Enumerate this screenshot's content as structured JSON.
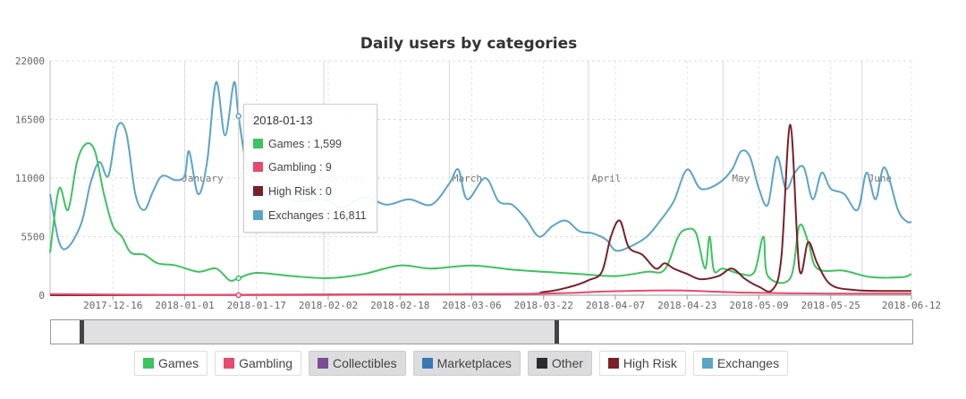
{
  "chart_data": {
    "type": "line",
    "title": "Daily users by categories",
    "xlabel": "",
    "ylabel": "",
    "ylim": [
      0,
      22000
    ],
    "xlim": [
      "2017-12-02",
      "2018-06-12"
    ],
    "y_ticks": [
      "0",
      "5500",
      "11000",
      "16500",
      "22000"
    ],
    "y_tick_values": [
      0,
      5500,
      11000,
      16500,
      22000
    ],
    "x_ticks": [
      "2017-12-16",
      "2018-01-01",
      "2018-01-17",
      "2018-02-02",
      "2018-02-18",
      "2018-03-06",
      "2018-03-22",
      "2018-04-07",
      "2018-04-23",
      "2018-05-09",
      "2018-05-25",
      "2018-06-12"
    ],
    "month_labels": [
      {
        "label": "January",
        "date": "2018-01-01"
      },
      {
        "label": "February",
        "date": "2018-02-01"
      },
      {
        "label": "March",
        "date": "2018-03-01"
      },
      {
        "label": "April",
        "date": "2018-04-01"
      },
      {
        "label": "May",
        "date": "2018-05-01"
      },
      {
        "label": "June",
        "date": "2018-06-01"
      }
    ],
    "grid": true,
    "legend_position": "bottom",
    "series": [
      {
        "name": "Exchanges",
        "color": "#5ba4c6",
        "points": [
          [
            "2017-12-02",
            9500
          ],
          [
            "2017-12-04",
            5000
          ],
          [
            "2017-12-06",
            4500
          ],
          [
            "2017-12-09",
            6800
          ],
          [
            "2017-12-11",
            10500
          ],
          [
            "2017-12-13",
            12500
          ],
          [
            "2017-12-15",
            11200
          ],
          [
            "2017-12-17",
            15800
          ],
          [
            "2017-12-19",
            15200
          ],
          [
            "2017-12-21",
            9500
          ],
          [
            "2017-12-23",
            8000
          ],
          [
            "2017-12-25",
            9800
          ],
          [
            "2017-12-27",
            11200
          ],
          [
            "2017-12-30",
            10800
          ],
          [
            "2018-01-01",
            11200
          ],
          [
            "2018-01-02",
            13500
          ],
          [
            "2018-01-04",
            9500
          ],
          [
            "2018-01-06",
            12500
          ],
          [
            "2018-01-08",
            20000
          ],
          [
            "2018-01-10",
            15000
          ],
          [
            "2018-01-12",
            20000
          ],
          [
            "2018-01-13",
            16811
          ],
          [
            "2018-01-15",
            12000
          ],
          [
            "2018-01-18",
            10500
          ],
          [
            "2018-01-22",
            9500
          ],
          [
            "2018-01-26",
            8800
          ],
          [
            "2018-02-01",
            9000
          ],
          [
            "2018-02-05",
            8200
          ],
          [
            "2018-02-10",
            9200
          ],
          [
            "2018-02-15",
            8500
          ],
          [
            "2018-02-20",
            9000
          ],
          [
            "2018-02-25",
            8500
          ],
          [
            "2018-03-01",
            10500
          ],
          [
            "2018-03-03",
            11800
          ],
          [
            "2018-03-05",
            9000
          ],
          [
            "2018-03-09",
            11000
          ],
          [
            "2018-03-12",
            8800
          ],
          [
            "2018-03-15",
            8500
          ],
          [
            "2018-03-18",
            7200
          ],
          [
            "2018-03-21",
            5500
          ],
          [
            "2018-03-24",
            6500
          ],
          [
            "2018-03-27",
            7000
          ],
          [
            "2018-03-30",
            6000
          ],
          [
            "2018-04-02",
            5800
          ],
          [
            "2018-04-05",
            5200
          ],
          [
            "2018-04-07",
            4200
          ],
          [
            "2018-04-10",
            4500
          ],
          [
            "2018-04-14",
            5500
          ],
          [
            "2018-04-17",
            7000
          ],
          [
            "2018-04-20",
            8800
          ],
          [
            "2018-04-23",
            11800
          ],
          [
            "2018-04-26",
            10000
          ],
          [
            "2018-04-30",
            10500
          ],
          [
            "2018-05-03",
            11800
          ],
          [
            "2018-05-05",
            13500
          ],
          [
            "2018-05-07",
            13000
          ],
          [
            "2018-05-09",
            10000
          ],
          [
            "2018-05-11",
            8500
          ],
          [
            "2018-05-13",
            13000
          ],
          [
            "2018-05-15",
            10000
          ],
          [
            "2018-05-17",
            11500
          ],
          [
            "2018-05-19",
            12000
          ],
          [
            "2018-05-21",
            9000
          ],
          [
            "2018-05-23",
            11500
          ],
          [
            "2018-05-25",
            10000
          ],
          [
            "2018-05-28",
            9500
          ],
          [
            "2018-05-31",
            8000
          ],
          [
            "2018-06-02",
            11500
          ],
          [
            "2018-06-04",
            9000
          ],
          [
            "2018-06-06",
            12000
          ],
          [
            "2018-06-09",
            8000
          ],
          [
            "2018-06-11",
            6900
          ],
          [
            "2018-06-12",
            6900
          ]
        ]
      },
      {
        "name": "Games",
        "color": "#3cc35f",
        "points": [
          [
            "2017-12-02",
            4000
          ],
          [
            "2017-12-04",
            10000
          ],
          [
            "2017-12-06",
            8000
          ],
          [
            "2017-12-08",
            12500
          ],
          [
            "2017-12-10",
            14200
          ],
          [
            "2017-12-12",
            13500
          ],
          [
            "2017-12-14",
            9500
          ],
          [
            "2017-12-16",
            6500
          ],
          [
            "2017-12-18",
            5500
          ],
          [
            "2017-12-20",
            4000
          ],
          [
            "2017-12-23",
            3800
          ],
          [
            "2017-12-26",
            3000
          ],
          [
            "2017-12-30",
            2800
          ],
          [
            "2018-01-04",
            2200
          ],
          [
            "2018-01-08",
            2500
          ],
          [
            "2018-01-11",
            1400
          ],
          [
            "2018-01-13",
            1599
          ],
          [
            "2018-01-17",
            2100
          ],
          [
            "2018-01-25",
            1800
          ],
          [
            "2018-02-02",
            1600
          ],
          [
            "2018-02-10",
            2000
          ],
          [
            "2018-02-18",
            2800
          ],
          [
            "2018-02-25",
            2500
          ],
          [
            "2018-03-06",
            2800
          ],
          [
            "2018-03-15",
            2400
          ],
          [
            "2018-03-22",
            2200
          ],
          [
            "2018-03-30",
            2000
          ],
          [
            "2018-04-07",
            1800
          ],
          [
            "2018-04-14",
            2200
          ],
          [
            "2018-04-18",
            2400
          ],
          [
            "2018-04-21",
            5500
          ],
          [
            "2018-04-23",
            6200
          ],
          [
            "2018-04-25",
            5800
          ],
          [
            "2018-04-27",
            2500
          ],
          [
            "2018-04-28",
            5500
          ],
          [
            "2018-04-29",
            2300
          ],
          [
            "2018-05-01",
            2500
          ],
          [
            "2018-05-05",
            2000
          ],
          [
            "2018-05-08",
            2200
          ],
          [
            "2018-05-10",
            5500
          ],
          [
            "2018-05-11",
            1800
          ],
          [
            "2018-05-16",
            1600
          ],
          [
            "2018-05-18",
            6500
          ],
          [
            "2018-05-20",
            5000
          ],
          [
            "2018-05-22",
            2500
          ],
          [
            "2018-05-28",
            2300
          ],
          [
            "2018-06-03",
            1700
          ],
          [
            "2018-06-10",
            1700
          ],
          [
            "2018-06-12",
            2000
          ]
        ]
      },
      {
        "name": "High Risk",
        "color": "#7a2027",
        "points": [
          [
            "2017-12-02",
            0
          ],
          [
            "2018-03-10",
            100
          ],
          [
            "2018-03-22",
            300
          ],
          [
            "2018-03-28",
            800
          ],
          [
            "2018-04-01",
            1400
          ],
          [
            "2018-04-04",
            2200
          ],
          [
            "2018-04-06",
            5500
          ],
          [
            "2018-04-08",
            7000
          ],
          [
            "2018-04-10",
            4500
          ],
          [
            "2018-04-13",
            3800
          ],
          [
            "2018-04-16",
            2500
          ],
          [
            "2018-04-18",
            3000
          ],
          [
            "2018-04-20",
            2500
          ],
          [
            "2018-04-23",
            2000
          ],
          [
            "2018-04-26",
            1500
          ],
          [
            "2018-04-30",
            1800
          ],
          [
            "2018-05-03",
            2500
          ],
          [
            "2018-05-06",
            1500
          ],
          [
            "2018-05-09",
            800
          ],
          [
            "2018-05-12",
            500
          ],
          [
            "2018-05-14",
            3500
          ],
          [
            "2018-05-16",
            16000
          ],
          [
            "2018-05-18",
            2500
          ],
          [
            "2018-05-20",
            5000
          ],
          [
            "2018-05-22",
            3000
          ],
          [
            "2018-05-25",
            1000
          ],
          [
            "2018-05-30",
            500
          ],
          [
            "2018-06-05",
            400
          ],
          [
            "2018-06-12",
            400
          ]
        ]
      },
      {
        "name": "Gambling",
        "color": "#e84a6f",
        "points": [
          [
            "2017-12-02",
            100
          ],
          [
            "2018-01-13",
            9
          ],
          [
            "2018-02-15",
            50
          ],
          [
            "2018-03-22",
            150
          ],
          [
            "2018-04-05",
            350
          ],
          [
            "2018-04-20",
            450
          ],
          [
            "2018-05-05",
            250
          ],
          [
            "2018-05-25",
            150
          ],
          [
            "2018-06-12",
            150
          ]
        ]
      }
    ],
    "tooltip": {
      "date": "2018-01-13",
      "rows": [
        {
          "text": "Games : 1,599",
          "color": "#3cc35f"
        },
        {
          "text": "Gambling : 9",
          "color": "#e84a6f"
        },
        {
          "text": "High Risk : 0",
          "color": "#7a2027"
        },
        {
          "text": "Exchanges : 16,811",
          "color": "#5ba4c6"
        }
      ]
    }
  },
  "legend": [
    {
      "label": "Games",
      "color": "#3cc35f",
      "active": true
    },
    {
      "label": "Gambling",
      "color": "#e84a6f",
      "active": true
    },
    {
      "label": "Collectibles",
      "color": "#7b4e94",
      "active": false
    },
    {
      "label": "Marketplaces",
      "color": "#3a78b5",
      "active": false
    },
    {
      "label": "Other",
      "color": "#2b2b2b",
      "active": false
    },
    {
      "label": "High Risk",
      "color": "#7a2027",
      "active": true
    },
    {
      "label": "Exchanges",
      "color": "#5ba4c6",
      "active": true
    }
  ]
}
